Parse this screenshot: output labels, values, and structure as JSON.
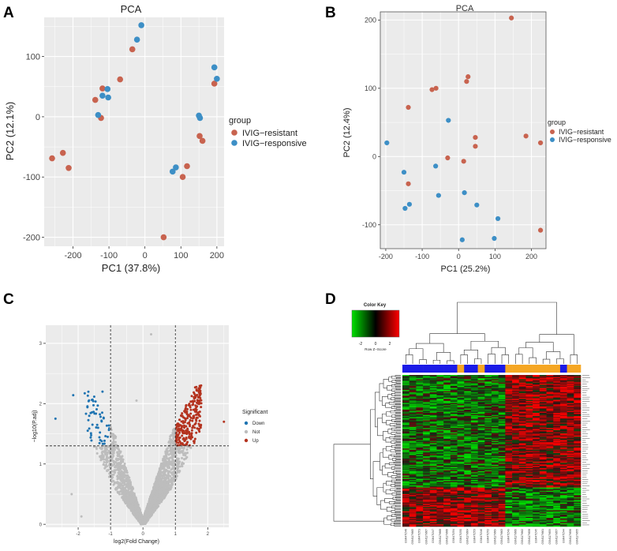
{
  "panels": {
    "A": "A",
    "B": "B",
    "C": "C",
    "D": "D"
  },
  "colors": {
    "resistant": "#c8634f",
    "responsive": "#3d8fc6",
    "down": "#1f74b2",
    "not": "#bdbdbd",
    "up": "#b4331f",
    "panel_bg": "#ebebeb",
    "grid": "#ffffff"
  },
  "chart_data": [
    {
      "id": "A",
      "type": "scatter",
      "title": "PCA",
      "xlabel": "PC1 (37.8%)",
      "ylabel": "PC2 (12.1%)",
      "xlim": [
        -280,
        220
      ],
      "ylim": [
        -215,
        165
      ],
      "xticks": [
        -200,
        -100,
        0,
        100,
        200
      ],
      "yticks": [
        -200,
        -100,
        0,
        100
      ],
      "xtick_labels": [
        "-200",
        "-100",
        "0",
        "100",
        "200"
      ],
      "ytick_labels": [
        "-200",
        "-100",
        "0",
        "100"
      ],
      "legend": {
        "title": "group",
        "entries": [
          "IVIG−resistant",
          "IVIG−responsive"
        ],
        "position": "right"
      },
      "series": [
        {
          "name": "IVIG−resistant",
          "color_key": "resistant",
          "points": [
            [
              -258,
              -69
            ],
            [
              -228,
              -60
            ],
            [
              -212,
              -85
            ],
            [
              -138,
              28
            ],
            [
              -122,
              -2
            ],
            [
              -118,
              47
            ],
            [
              -69,
              62
            ],
            [
              -35,
              112
            ],
            [
              52,
              -200
            ],
            [
              105,
              -100
            ],
            [
              117,
              -82
            ],
            [
              152,
              -32
            ],
            [
              160,
              -40
            ],
            [
              193,
              55
            ]
          ]
        },
        {
          "name": "IVIG−responsive",
          "color_key": "responsive",
          "points": [
            [
              -130,
              3
            ],
            [
              -118,
              35
            ],
            [
              -104,
              46
            ],
            [
              -102,
              32
            ],
            [
              -22,
              128
            ],
            [
              -10,
              152
            ],
            [
              77,
              -91
            ],
            [
              86,
              -84
            ],
            [
              150,
              2
            ],
            [
              153,
              -2
            ],
            [
              193,
              82
            ],
            [
              200,
              63
            ]
          ]
        }
      ]
    },
    {
      "id": "B",
      "type": "scatter",
      "title": "PCA",
      "xlabel": "PC1 (25.2%)",
      "ylabel": "PC2 (12.4%)",
      "xlim": [
        -215,
        240
      ],
      "ylim": [
        -135,
        212
      ],
      "xticks": [
        -200,
        -100,
        0,
        100,
        200
      ],
      "yticks": [
        -100,
        0,
        100,
        200
      ],
      "xtick_labels": [
        "-200",
        "-100",
        "0",
        "100",
        "200"
      ],
      "ytick_labels": [
        "-100",
        "0",
        "100",
        "200"
      ],
      "legend": {
        "title": "group",
        "entries": [
          "IVIG−resistant",
          "IVIG−responsive"
        ],
        "position": "right"
      },
      "series": [
        {
          "name": "IVIG−resistant",
          "color_key": "resistant",
          "points": [
            [
              -138,
              72
            ],
            [
              -138,
              -40
            ],
            [
              -73,
              98
            ],
            [
              -62,
              100
            ],
            [
              -30,
              -2
            ],
            [
              14,
              -7
            ],
            [
              22,
              110
            ],
            [
              26,
              117
            ],
            [
              46,
              28
            ],
            [
              46,
              15
            ],
            [
              145,
              203
            ],
            [
              185,
              30
            ],
            [
              225,
              20
            ],
            [
              225,
              -108
            ]
          ]
        },
        {
          "name": "IVIG−responsive",
          "color_key": "responsive",
          "points": [
            [
              -197,
              20
            ],
            [
              -150,
              -23
            ],
            [
              -147,
              -76
            ],
            [
              -135,
              -70
            ],
            [
              -63,
              -14
            ],
            [
              -55,
              -57
            ],
            [
              -28,
              53
            ],
            [
              10,
              -122
            ],
            [
              16,
              -53
            ],
            [
              50,
              -71
            ],
            [
              98,
              -120
            ],
            [
              108,
              -91
            ]
          ]
        }
      ]
    },
    {
      "id": "C",
      "type": "scatter",
      "title": "",
      "xlabel": "log2(Fold Change)",
      "ylabel": "−log10(P.adj)",
      "xlim": [
        -3.0,
        2.65
      ],
      "ylim": [
        -0.05,
        3.3
      ],
      "xticks": [
        -2,
        -1,
        0,
        1,
        2
      ],
      "yticks": [
        0,
        1,
        2,
        3
      ],
      "xtick_labels": [
        "-2",
        "-1",
        "0",
        "1",
        "2"
      ],
      "ytick_labels": [
        "0",
        "1",
        "2",
        "3"
      ],
      "thresholds": {
        "log2fc": [
          -1,
          1
        ],
        "neg_log10_padj": 1.3
      },
      "legend": {
        "title": "Significant",
        "entries": [
          "Down",
          "Not",
          "Up"
        ],
        "position": "right"
      },
      "approx_counts": {
        "Down": 55,
        "Not": 2600,
        "Up": 250
      },
      "extreme_points": [
        [
          -2.7,
          1.75
        ],
        [
          -2.2,
          0.5
        ],
        [
          -1.9,
          0.13
        ],
        [
          0.25,
          3.15
        ],
        [
          -0.2,
          2.05
        ],
        [
          2.5,
          1.7
        ],
        [
          1.75,
          2.05
        ],
        [
          -1.25,
          2.2
        ]
      ]
    },
    {
      "id": "D",
      "type": "heatmap",
      "title": "Color Key",
      "key_ticks": [
        "-2",
        "0",
        "2"
      ],
      "key_label": "Row Z−Score",
      "row_count": 140,
      "column_count": 26,
      "column_groups": [
        "responsive",
        "responsive",
        "responsive",
        "responsive",
        "responsive",
        "responsive",
        "responsive",
        "responsive",
        "resistant",
        "responsive",
        "responsive",
        "resistant",
        "responsive",
        "responsive",
        "responsive",
        "resistant",
        "resistant",
        "resistant",
        "resistant",
        "resistant",
        "resistant",
        "resistant",
        "resistant",
        "responsive",
        "resistant",
        "resistant"
      ],
      "column_labels": [
        "GSM471548",
        "GSM1179665",
        "GSM471551",
        "GSM1179667",
        "GSM471547",
        "GSM1179668",
        "GSM1179666",
        "GSM471554",
        "GSM471550",
        "GSM1179664",
        "GSM471553",
        "GSM471546",
        "GSM471552",
        "GSM1179669",
        "GSM1179663",
        "GSM471549",
        "GSM1179660",
        "GSM1179662",
        "GSM1179658",
        "GSM471545",
        "GSM1179661",
        "GSM1179659",
        "GSM1179657",
        "GSM471544",
        "GSM1179656",
        "GSM1179655"
      ],
      "column_clusters": [
        "left",
        "left",
        "left",
        "left",
        "left",
        "left",
        "left",
        "left",
        "left",
        "left",
        "left",
        "left",
        "left",
        "left",
        "left",
        "right",
        "right",
        "right",
        "right",
        "right",
        "right",
        "right",
        "right",
        "right",
        "right",
        "right"
      ],
      "block_pattern": {
        "left_upper": "green",
        "right_upper": "red",
        "left_lower": "red",
        "right_lower": "green"
      }
    }
  ]
}
